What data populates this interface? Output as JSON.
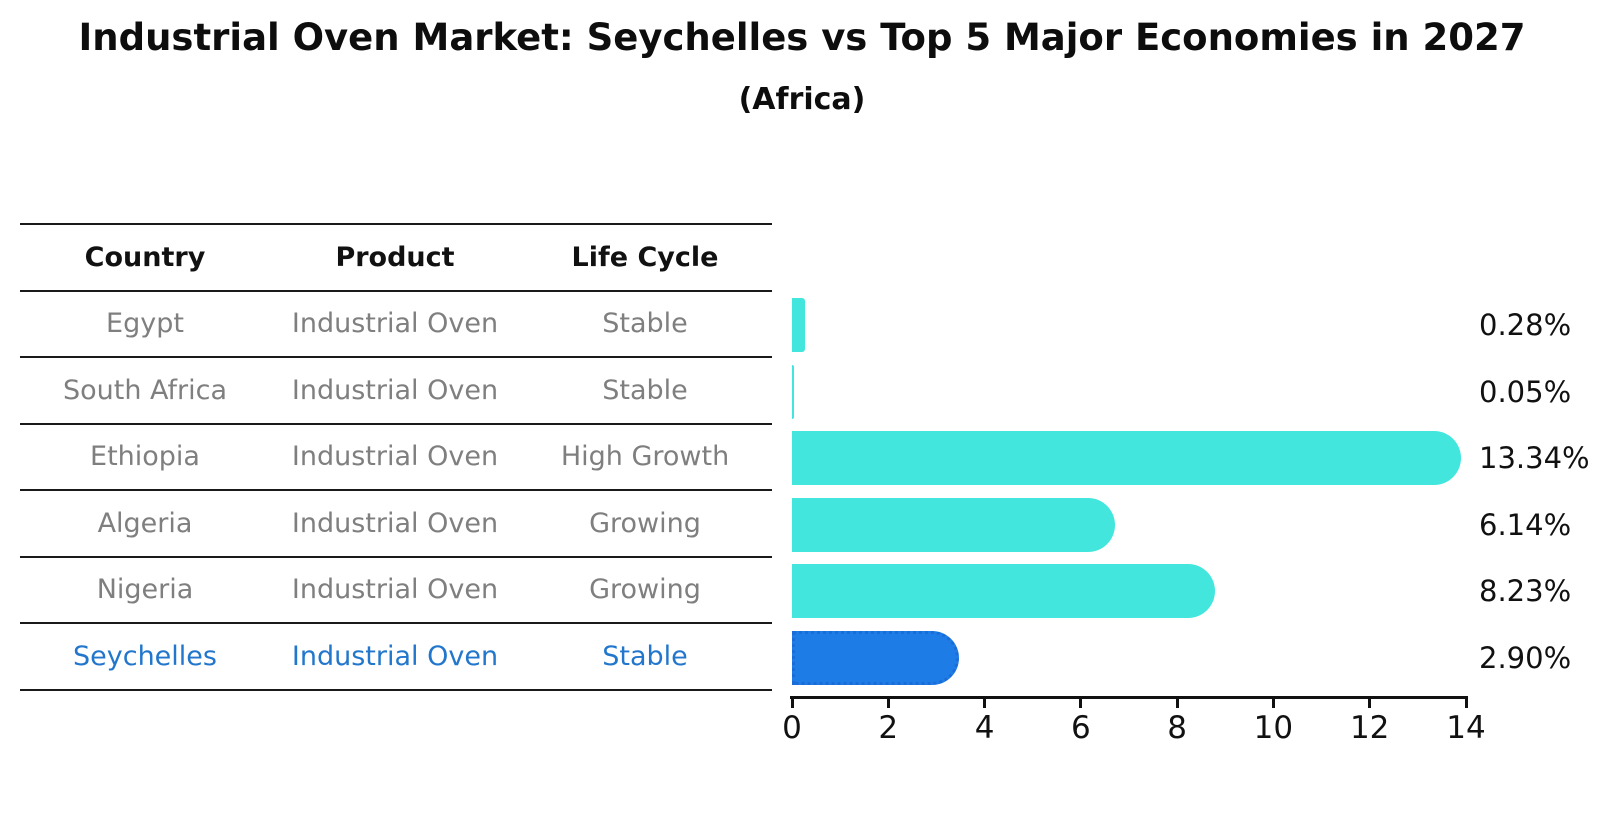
{
  "title": "Industrial Oven Market: Seychelles vs Top 5 Major Economies in 2027",
  "subtitle": "(Africa)",
  "table": {
    "headers": {
      "country": "Country",
      "product": "Product",
      "life_cycle": "Life Cycle"
    },
    "rows": [
      {
        "country": "Egypt",
        "product": "Industrial Oven",
        "life_cycle": "Stable",
        "highlight": false
      },
      {
        "country": "South Africa",
        "product": "Industrial Oven",
        "life_cycle": "Stable",
        "highlight": false
      },
      {
        "country": "Ethiopia",
        "product": "Industrial Oven",
        "life_cycle": "High Growth",
        "highlight": false
      },
      {
        "country": "Algeria",
        "product": "Industrial Oven",
        "life_cycle": "Growing",
        "highlight": false
      },
      {
        "country": "Nigeria",
        "product": "Industrial Oven",
        "life_cycle": "Growing",
        "highlight": false
      },
      {
        "country": "Seychelles",
        "product": "Industrial Oven",
        "life_cycle": "Stable",
        "highlight": true
      }
    ]
  },
  "chart_data": {
    "type": "bar",
    "orientation": "horizontal",
    "title": "Industrial Oven Market: Seychelles vs Top 5 Major Economies in 2027",
    "subtitle": "(Africa)",
    "categories": [
      "Egypt",
      "South Africa",
      "Ethiopia",
      "Algeria",
      "Nigeria",
      "Seychelles"
    ],
    "values": [
      0.28,
      0.05,
      13.34,
      6.14,
      8.23,
      2.9
    ],
    "value_labels": [
      "0.28%",
      "0.05%",
      "13.34%",
      "6.14%",
      "8.23%",
      "2.90%"
    ],
    "xlim": [
      0,
      14
    ],
    "xticks": [
      "0",
      "2",
      "4",
      "6",
      "8",
      "10",
      "12",
      "14"
    ],
    "highlight_index": 5,
    "grid": false,
    "legend": false,
    "colors": {
      "bar": "#42e6dd",
      "highlight_bar": "#1e7ce6",
      "highlight_border": "#1a6cd8",
      "highlight_text": "#2277cc",
      "table_text": "#7f7f7f",
      "axis_text": "#111111"
    }
  }
}
